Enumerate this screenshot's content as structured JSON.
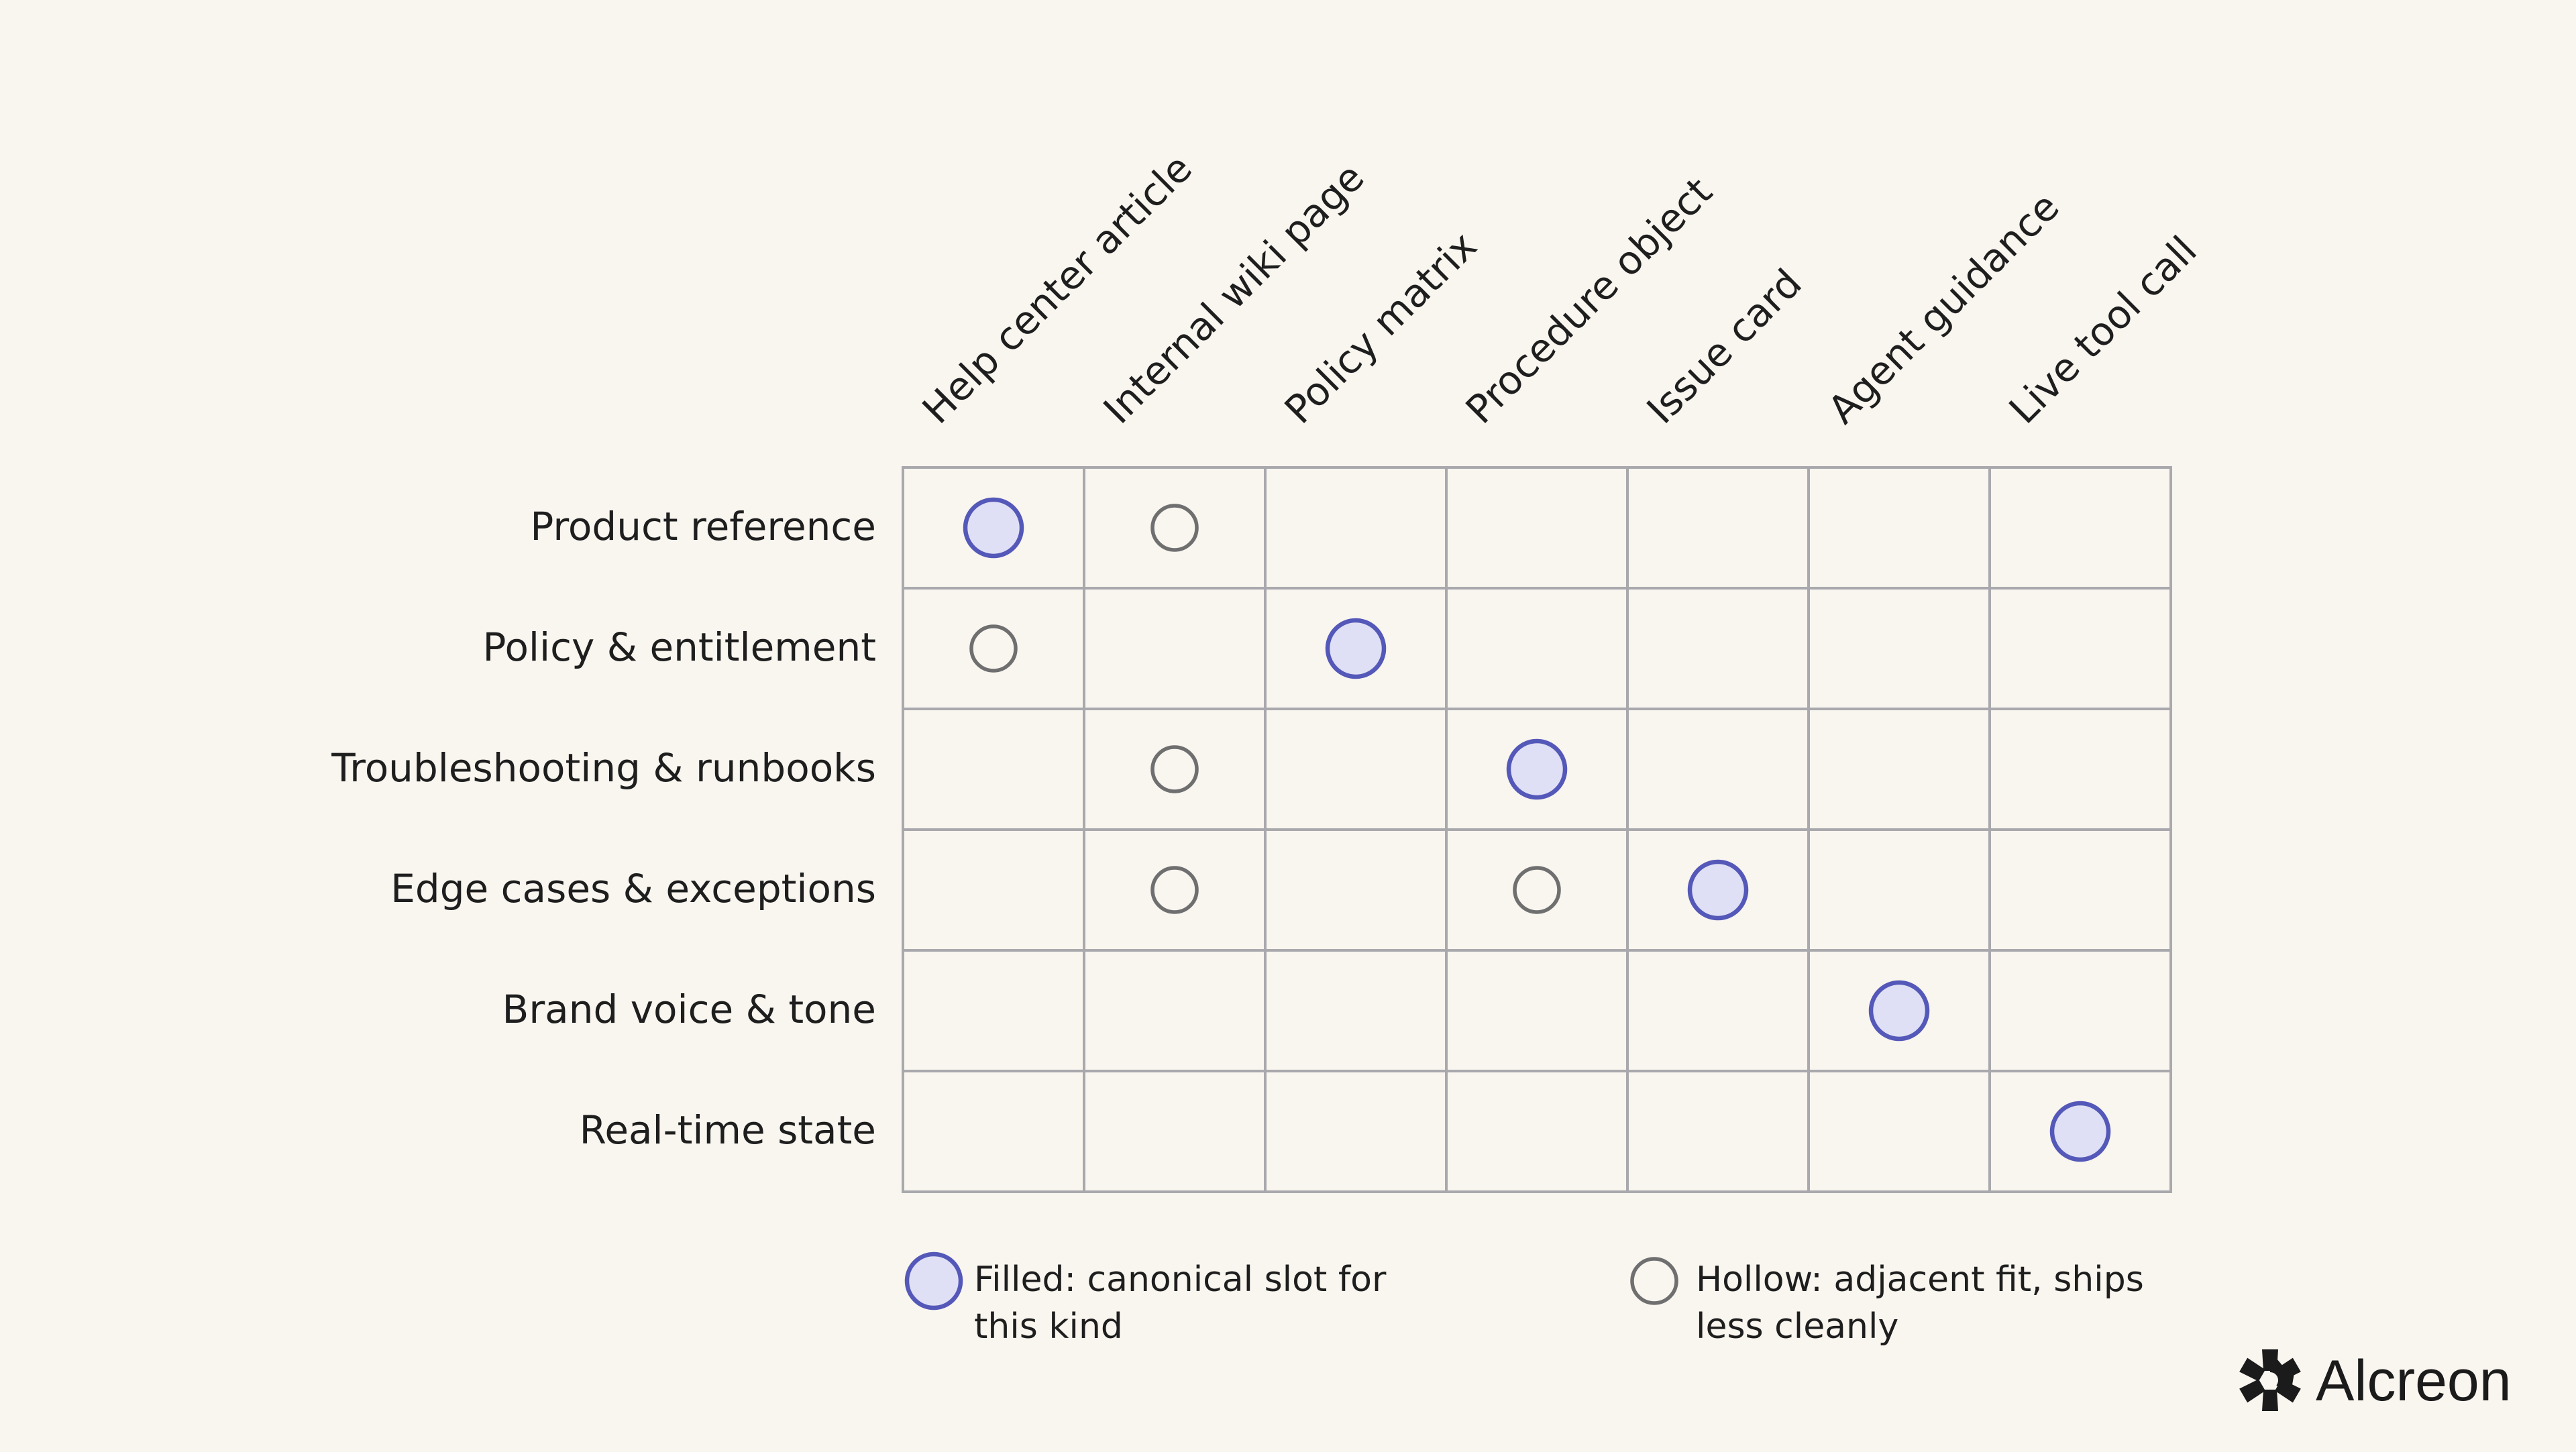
{
  "columns": [
    "Help center article",
    "Internal wiki page",
    "Policy matrix",
    "Procedure object",
    "Issue card",
    "Agent guidance",
    "Live tool call"
  ],
  "rows": [
    "Product reference",
    "Policy & entitlement",
    "Troubleshooting & runbooks",
    "Edge cases & exceptions",
    "Brand voice & tone",
    "Real-time state"
  ],
  "matrix": [
    [
      "filled",
      "hollow",
      "",
      "",
      "",
      "",
      ""
    ],
    [
      "hollow",
      "",
      "filled",
      "",
      "",
      "",
      ""
    ],
    [
      "",
      "hollow",
      "",
      "filled",
      "",
      "",
      ""
    ],
    [
      "",
      "hollow",
      "",
      "hollow",
      "filled",
      "",
      ""
    ],
    [
      "",
      "",
      "",
      "",
      "",
      "filled",
      ""
    ],
    [
      "",
      "",
      "",
      "",
      "",
      "",
      "filled"
    ]
  ],
  "legend": {
    "filled": {
      "lines": [
        "Filled: canonical slot for",
        "this kind"
      ]
    },
    "hollow": {
      "lines": [
        "Hollow: adjacent fit, ships",
        "less cleanly"
      ]
    }
  },
  "brand": {
    "name": "Alcreon",
    "icon": "alcreon-logo-icon"
  },
  "colors": {
    "background": "#f9f5ef",
    "grid": "#a9a9ad",
    "filled_fill": "#dfe0f5",
    "filled_stroke": "#5458b8",
    "hollow_stroke": "#6f6f70",
    "text": "#1e1e1e"
  }
}
